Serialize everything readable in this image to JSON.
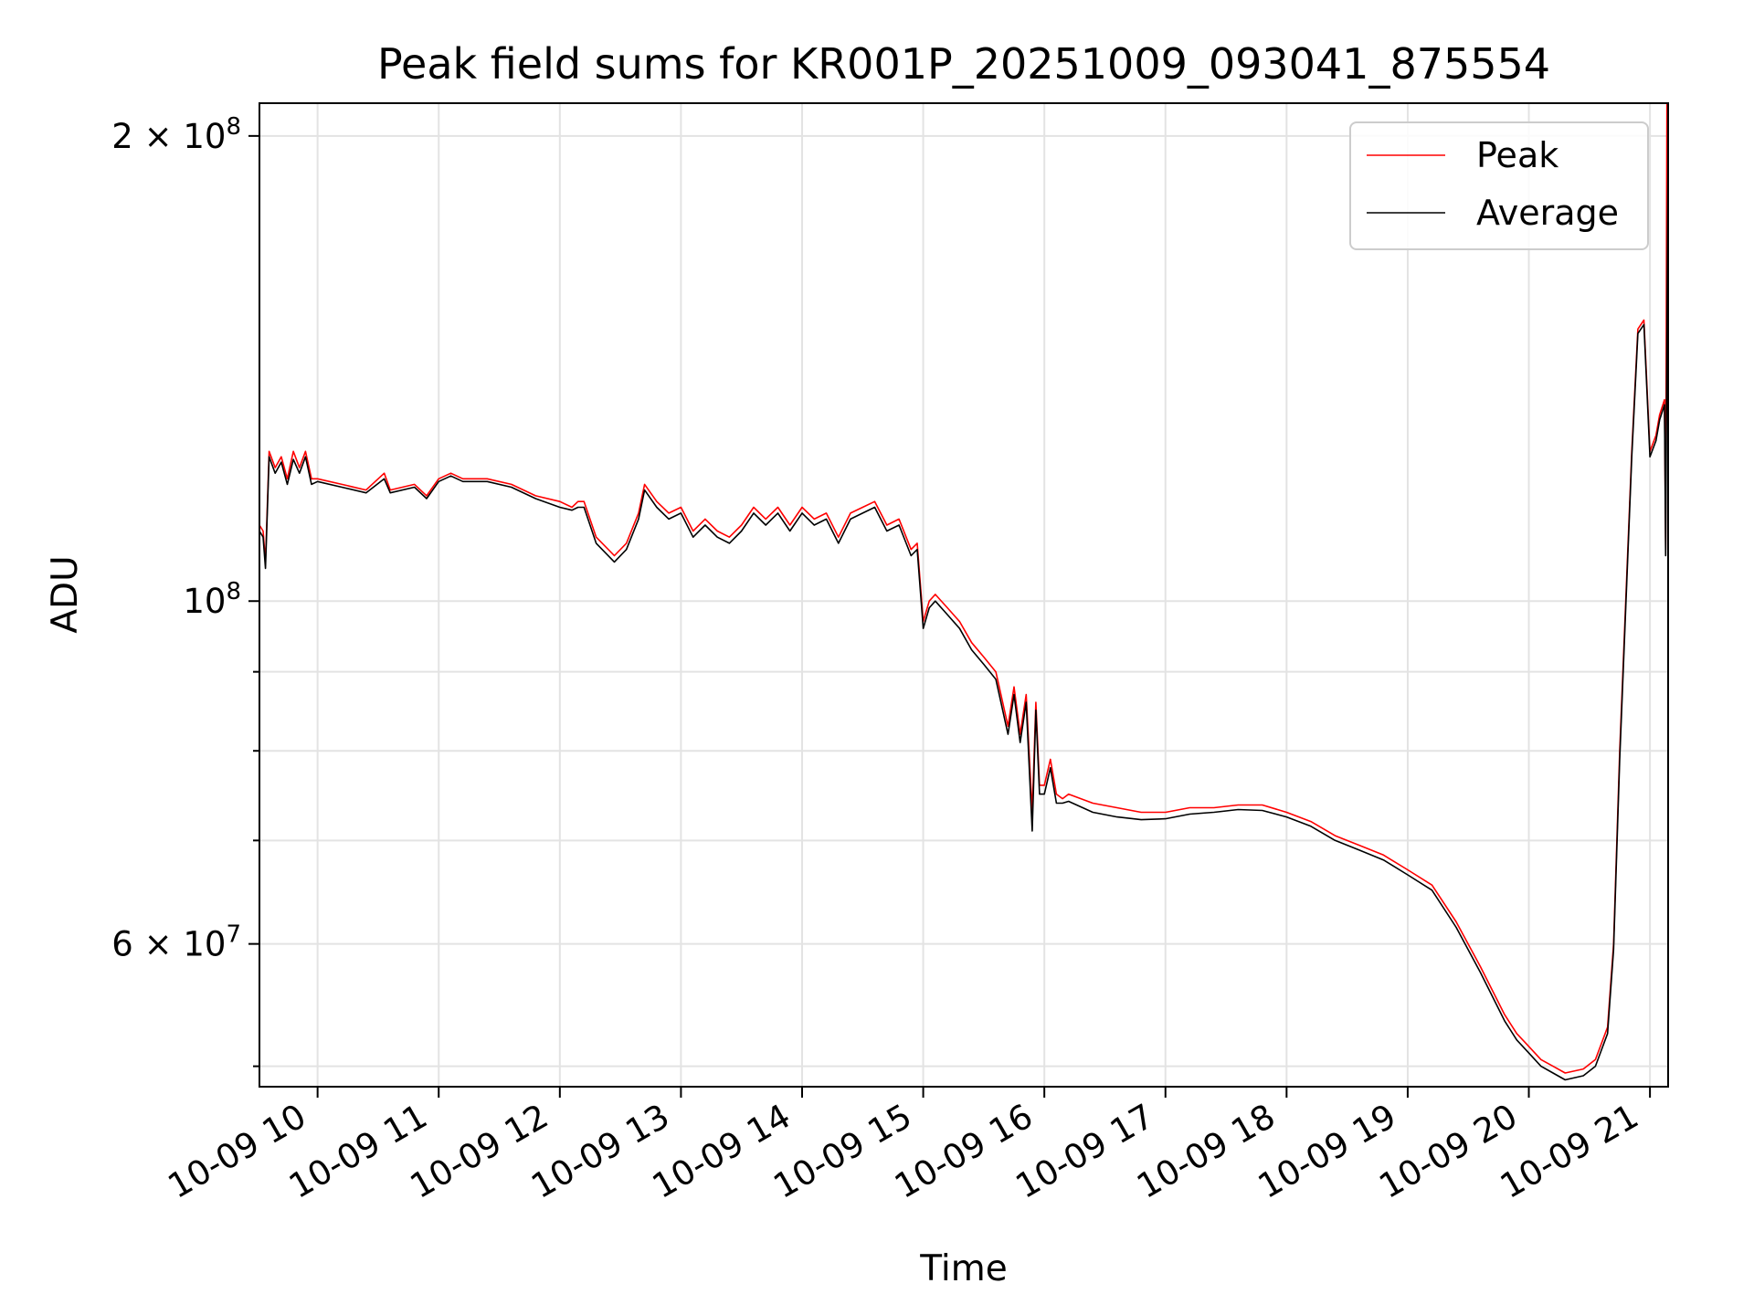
{
  "chart_data": {
    "type": "line",
    "title": "Peak field sums for KR001P_20251009_093041_875554",
    "xlabel": "Time",
    "ylabel": "ADU",
    "yscale": "log",
    "ylim": [
      48500000,
      210000000
    ],
    "xlim": [
      9.52,
      21.15
    ],
    "grid": true,
    "legend_position": "top-right",
    "x_ticks": [
      {
        "value": 10,
        "label": "10-09 10"
      },
      {
        "value": 11,
        "label": "10-09 11"
      },
      {
        "value": 12,
        "label": "10-09 12"
      },
      {
        "value": 13,
        "label": "10-09 13"
      },
      {
        "value": 14,
        "label": "10-09 14"
      },
      {
        "value": 15,
        "label": "10-09 15"
      },
      {
        "value": 16,
        "label": "10-09 16"
      },
      {
        "value": 17,
        "label": "10-09 17"
      },
      {
        "value": 18,
        "label": "10-09 18"
      },
      {
        "value": 19,
        "label": "10-09 19"
      },
      {
        "value": 20,
        "label": "10-09 20"
      },
      {
        "value": 21,
        "label": "10-09 21"
      }
    ],
    "y_major_ticks": [
      {
        "value": 100000000,
        "base": "10",
        "exp": "8"
      },
      {
        "value": 200000000,
        "base": "2 × 10",
        "exp": "8"
      },
      {
        "value": 60000000,
        "base": "6 × 10",
        "exp": "7"
      }
    ],
    "y_minor_ticks": [
      50000000,
      70000000,
      80000000,
      90000000
    ],
    "series": [
      {
        "name": "Peak",
        "color": "#ff0000",
        "x": [
          9.52,
          9.55,
          9.57,
          9.6,
          9.65,
          9.7,
          9.75,
          9.8,
          9.85,
          9.9,
          9.95,
          10.0,
          10.2,
          10.4,
          10.55,
          10.6,
          10.8,
          10.9,
          11.0,
          11.1,
          11.2,
          11.4,
          11.6,
          11.8,
          12.0,
          12.1,
          12.15,
          12.2,
          12.3,
          12.45,
          12.55,
          12.65,
          12.7,
          12.8,
          12.9,
          13.0,
          13.1,
          13.2,
          13.3,
          13.4,
          13.5,
          13.6,
          13.7,
          13.8,
          13.9,
          14.0,
          14.1,
          14.2,
          14.3,
          14.4,
          14.5,
          14.6,
          14.7,
          14.8,
          14.9,
          14.95,
          15.0,
          15.05,
          15.1,
          15.2,
          15.3,
          15.4,
          15.5,
          15.6,
          15.7,
          15.75,
          15.8,
          15.85,
          15.9,
          15.93,
          15.96,
          16.0,
          16.05,
          16.1,
          16.15,
          16.2,
          16.4,
          16.6,
          16.8,
          17.0,
          17.2,
          17.4,
          17.6,
          17.8,
          18.0,
          18.2,
          18.4,
          18.6,
          18.8,
          19.0,
          19.2,
          19.4,
          19.6,
          19.8,
          19.9,
          20.0,
          20.1,
          20.2,
          20.3,
          20.45,
          20.55,
          20.65,
          20.7,
          20.75,
          20.8,
          20.85,
          20.9,
          20.95,
          21.0,
          21.05,
          21.08,
          21.12,
          21.13,
          21.14,
          21.15
        ],
        "values": [
          112000000,
          111000000,
          106000000,
          125000000,
          122000000,
          124000000,
          120000000,
          125000000,
          122000000,
          125000000,
          120000000,
          120000000,
          119000000,
          118000000,
          121000000,
          118000000,
          119000000,
          117000000,
          120000000,
          121000000,
          120000000,
          120000000,
          119000000,
          117000000,
          116000000,
          115000000,
          116000000,
          116000000,
          110000000,
          107000000,
          109000000,
          114000000,
          119000000,
          116000000,
          114000000,
          115000000,
          111000000,
          113000000,
          111000000,
          110000000,
          112000000,
          115000000,
          113000000,
          115000000,
          112000000,
          115000000,
          113000000,
          114000000,
          110000000,
          114000000,
          115000000,
          116000000,
          112000000,
          113000000,
          108000000,
          109000000,
          97000000,
          100000000,
          101000000,
          99000000,
          97000000,
          94000000,
          92000000,
          90000000,
          83000000,
          88000000,
          82000000,
          87000000,
          73000000,
          86000000,
          76000000,
          76000000,
          79000000,
          75000000,
          74500000,
          75000000,
          74000000,
          73500000,
          73000000,
          73000000,
          73500000,
          73500000,
          73800000,
          73800000,
          73000000,
          72000000,
          70500000,
          69500000,
          68500000,
          67000000,
          65500000,
          62000000,
          58000000,
          54000000,
          52500000,
          51500000,
          50500000,
          50000000,
          49500000,
          49800000,
          50500000,
          53000000,
          60000000,
          80000000,
          100000000,
          125000000,
          150000000,
          152000000,
          125000000,
          128000000,
          132000000,
          135000000,
          108000000,
          210000000,
          210000000
        ]
      },
      {
        "name": "Average",
        "color": "#000000",
        "x": [
          9.52,
          9.55,
          9.57,
          9.6,
          9.65,
          9.7,
          9.75,
          9.8,
          9.85,
          9.9,
          9.95,
          10.0,
          10.2,
          10.4,
          10.55,
          10.6,
          10.8,
          10.9,
          11.0,
          11.1,
          11.2,
          11.4,
          11.6,
          11.8,
          12.0,
          12.1,
          12.15,
          12.2,
          12.3,
          12.45,
          12.55,
          12.65,
          12.7,
          12.8,
          12.9,
          13.0,
          13.1,
          13.2,
          13.3,
          13.4,
          13.5,
          13.6,
          13.7,
          13.8,
          13.9,
          14.0,
          14.1,
          14.2,
          14.3,
          14.4,
          14.5,
          14.6,
          14.7,
          14.8,
          14.9,
          14.95,
          15.0,
          15.05,
          15.1,
          15.2,
          15.3,
          15.4,
          15.5,
          15.6,
          15.7,
          15.75,
          15.8,
          15.85,
          15.9,
          15.93,
          15.96,
          16.0,
          16.05,
          16.1,
          16.15,
          16.2,
          16.4,
          16.6,
          16.8,
          17.0,
          17.2,
          17.4,
          17.6,
          17.8,
          18.0,
          18.2,
          18.4,
          18.6,
          18.8,
          19.0,
          19.2,
          19.4,
          19.6,
          19.8,
          19.9,
          20.0,
          20.1,
          20.2,
          20.3,
          20.45,
          20.55,
          20.65,
          20.7,
          20.75,
          20.8,
          20.85,
          20.9,
          20.95,
          21.0,
          21.05,
          21.08,
          21.12,
          21.13,
          21.14,
          21.15
        ],
        "values": [
          111000000,
          110000000,
          105000000,
          124000000,
          121000000,
          123000000,
          119000000,
          123500000,
          121000000,
          124000000,
          119000000,
          119500000,
          118500000,
          117500000,
          120000000,
          117500000,
          118500000,
          116500000,
          119500000,
          120500000,
          119500000,
          119500000,
          118500000,
          116500000,
          115000000,
          114500000,
          115000000,
          115000000,
          109000000,
          106000000,
          108000000,
          113000000,
          118000000,
          115000000,
          113000000,
          114000000,
          110000000,
          112000000,
          110000000,
          109000000,
          111000000,
          114000000,
          112000000,
          114000000,
          111000000,
          114000000,
          112000000,
          113000000,
          109000000,
          113000000,
          114000000,
          115000000,
          111000000,
          112000000,
          107000000,
          108000000,
          96000000,
          99000000,
          100000000,
          98000000,
          96000000,
          93000000,
          91000000,
          89000000,
          82000000,
          87000000,
          81000000,
          86000000,
          71000000,
          85000000,
          75000000,
          75000000,
          78000000,
          74000000,
          74000000,
          74200000,
          73000000,
          72500000,
          72200000,
          72300000,
          72800000,
          73000000,
          73300000,
          73200000,
          72500000,
          71500000,
          70000000,
          69000000,
          68000000,
          66500000,
          65000000,
          61500000,
          57500000,
          53500000,
          52000000,
          51000000,
          50000000,
          49500000,
          49000000,
          49300000,
          50000000,
          52500000,
          59500000,
          79000000,
          99000000,
          124000000,
          149000000,
          151000000,
          124000000,
          127000000,
          131000000,
          134000000,
          107000000,
          150000000,
          200000000
        ]
      }
    ]
  }
}
